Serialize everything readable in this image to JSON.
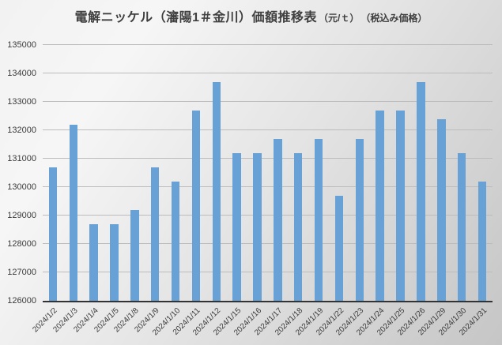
{
  "title": {
    "main": "電解ニッケル（瀋陽1＃金川）価額推移表",
    "unit": "（元/ｔ）",
    "note": "（税込み価格）"
  },
  "chart_data": {
    "type": "bar",
    "title": "電解ニッケル（瀋陽1＃金川）価額推移表（元/ｔ）（税込み価格）",
    "categories": [
      "2024/1/2",
      "2024/1/3",
      "2024/1/4",
      "2024/1/5",
      "2024/1/8",
      "2024/1/9",
      "2024/1/10",
      "2024/1/11",
      "2024/1/12",
      "2024/1/15",
      "2024/1/16",
      "2024/1/17",
      "2024/1/18",
      "2024/1/19",
      "2024/1/22",
      "2024/1/23",
      "2024/1/24",
      "2024/1/25",
      "2024/1/26",
      "2024/1/29",
      "2024/1/30",
      "2024/1/31"
    ],
    "values": [
      130700,
      132200,
      128700,
      128700,
      129200,
      130700,
      130200,
      132700,
      133700,
      131200,
      131200,
      131700,
      131200,
      131700,
      129700,
      131700,
      132700,
      132700,
      133700,
      132400,
      131200,
      130200
    ],
    "xlabel": "",
    "ylabel": "",
    "ylim": [
      126000,
      135000
    ],
    "yticks": [
      126000,
      127000,
      128000,
      129000,
      130000,
      131000,
      132000,
      133000,
      134000,
      135000
    ],
    "grid": true,
    "legend": false,
    "colors": {
      "bar": "#68a1d6",
      "gridline": "#bcbcbc",
      "axis": "#333333",
      "text": "#3b3b3b"
    }
  }
}
